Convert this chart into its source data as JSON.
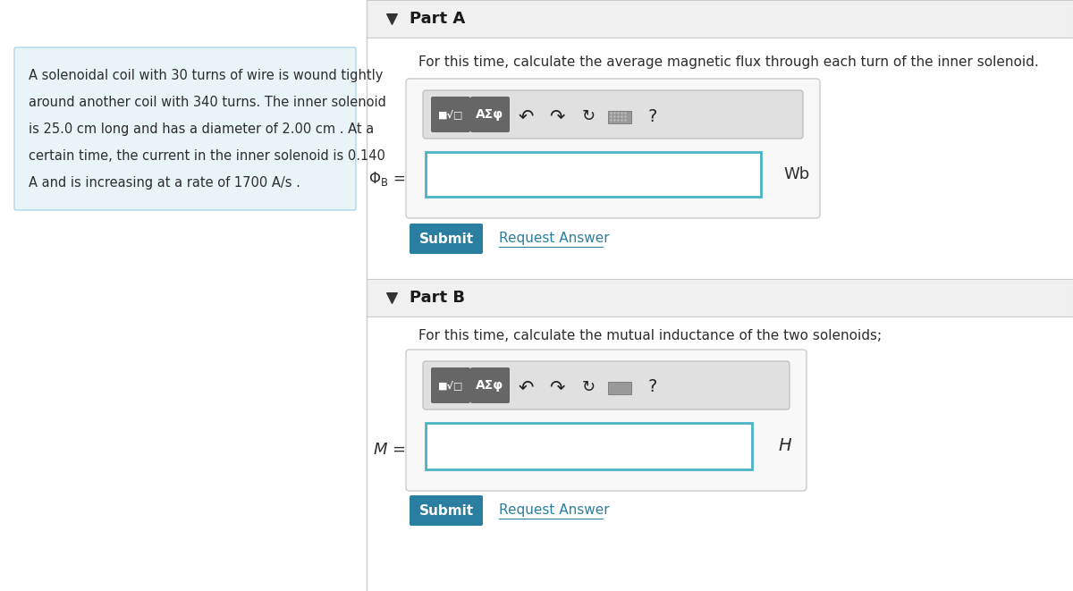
{
  "bg_color": "#ffffff",
  "left_panel_bg": "#e8f4f8",
  "divider_color": "#cccccc",
  "header_bg": "#f0f0f0",
  "part_a_header": "Part A",
  "part_b_header": "Part B",
  "part_a_question": "For this time, calculate the average magnetic flux through each turn of the inner solenoid.",
  "part_b_question": "For this time, calculate the mutual inductance of the two solenoids;",
  "part_a_unit": "Wb",
  "part_b_unit": "H",
  "submit_bg": "#2a7fa0",
  "request_answer_color": "#2a7fa0",
  "input_border_color": "#4ab3c8",
  "panel_border": "#cccccc",
  "left_text_line1": "A solenoidal coil with 30 turns of wire is wound tightly",
  "left_text_line2": "around another coil with 340 turns. The inner solenoid",
  "left_text_line3": "is 25.0 cm long and has a diameter of 2.00 cm . At a",
  "left_text_line4": "certain time, the current in the inner solenoid is 0.140",
  "left_text_line5": "A and is increasing at a rate of 1700 A/s .",
  "text_color": "#2d2d2d",
  "icon_color": "#222222",
  "btn_color": "#666666"
}
